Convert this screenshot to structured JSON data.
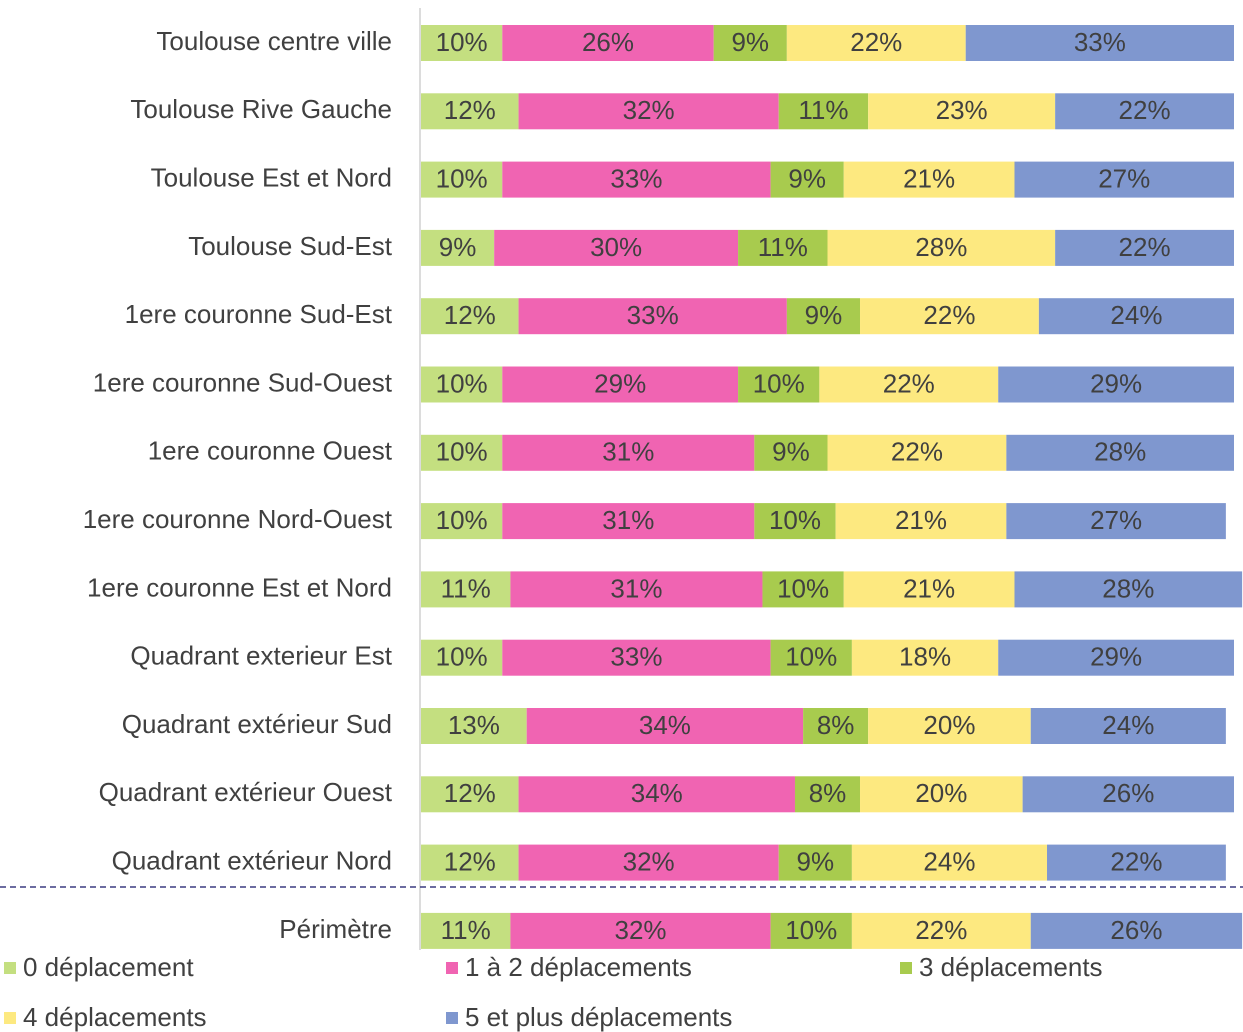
{
  "chart_data": {
    "type": "stacked-bar-horizontal",
    "categories": [
      "Toulouse centre ville",
      "Toulouse Rive Gauche",
      "Toulouse Est et Nord",
      "Toulouse Sud-Est",
      "1ere couronne Sud-Est",
      "1ere couronne Sud-Ouest",
      "1ere couronne Ouest",
      "1ere couronne Nord-Ouest",
      "1ere couronne Est et Nord",
      "Quadrant exterieur Est",
      "Quadrant extérieur Sud",
      "Quadrant extérieur Ouest",
      "Quadrant extérieur Nord",
      "Périmètre"
    ],
    "xlim": [
      0,
      100
    ],
    "series": [
      {
        "name": "0 déplacement",
        "color": "#c4df80",
        "values": [
          10,
          12,
          10,
          9,
          12,
          10,
          10,
          10,
          11,
          10,
          13,
          12,
          12,
          11
        ],
        "value_labels": [
          "10%",
          "12%",
          "10%",
          "9%",
          "12%",
          "10%",
          "10%",
          "10%",
          "11%",
          "10%",
          "13%",
          "12%",
          "12%",
          "11%"
        ]
      },
      {
        "name": "1 à 2 déplacements",
        "color": "#f064b2",
        "values": [
          26,
          32,
          33,
          30,
          33,
          29,
          31,
          31,
          31,
          33,
          34,
          34,
          32,
          32
        ],
        "value_labels": [
          "26%",
          "32%",
          "33%",
          "30%",
          "33%",
          "29%",
          "31%",
          "31%",
          "31%",
          "33%",
          "34%",
          "34%",
          "32%",
          "32%"
        ]
      },
      {
        "name": "3 déplacements",
        "color": "#a8cb4e",
        "values": [
          9,
          11,
          9,
          11,
          9,
          10,
          9,
          10,
          10,
          10,
          8,
          8,
          9,
          10
        ],
        "value_labels": [
          "9%",
          "11%",
          "9%",
          "11%",
          "9%",
          "10%",
          "9%",
          "10%",
          "10%",
          "10%",
          "8%",
          "8%",
          "9%",
          "10%"
        ]
      },
      {
        "name": "4 déplacements",
        "color": "#fde980",
        "values": [
          22,
          23,
          21,
          28,
          22,
          22,
          22,
          21,
          21,
          18,
          20,
          20,
          24,
          22
        ],
        "value_labels": [
          "22%",
          "23%",
          "21%",
          "28%",
          "22%",
          "22%",
          "22%",
          "21%",
          "21%",
          "18%",
          "20%",
          "20%",
          "24%",
          "22%"
        ]
      },
      {
        "name": "5 et plus déplacements",
        "color": "#7f97cf",
        "values": [
          33,
          22,
          27,
          22,
          24,
          29,
          28,
          27,
          28,
          29,
          24,
          26,
          22,
          26
        ],
        "value_labels": [
          "33%",
          "22%",
          "27%",
          "22%",
          "24%",
          "29%",
          "28%",
          "27%",
          "28%",
          "29%",
          "24%",
          "26%",
          "22%",
          "26%"
        ]
      }
    ]
  }
}
